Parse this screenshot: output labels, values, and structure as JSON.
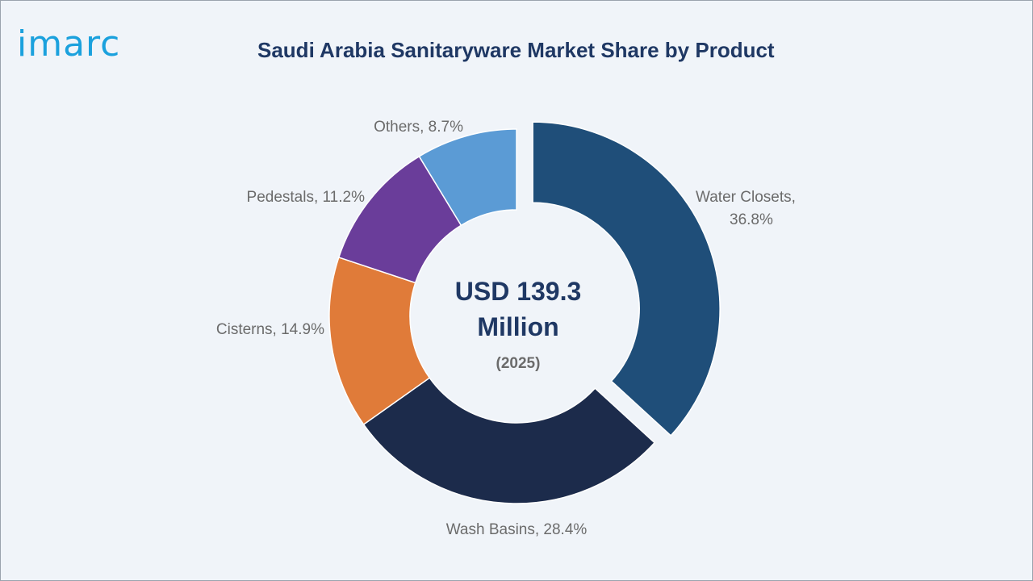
{
  "brand": {
    "logo_text": "imarc"
  },
  "chart_data": {
    "type": "pie",
    "title": "Saudi Arabia Sanitaryware Market Share by Product",
    "center_value": "USD 139.3 Million",
    "center_value_lines": [
      "USD 139.3",
      "Million"
    ],
    "center_year": "(2025)",
    "unit": "%",
    "slices": [
      {
        "label": "Water Closets",
        "value": 36.8,
        "color": "#1f4e79",
        "exploded": true,
        "label_lines": [
          "Water Closets,",
          "36.8%"
        ]
      },
      {
        "label": "Wash Basins",
        "value": 28.4,
        "color": "#1c2b4b",
        "exploded": false,
        "label_lines": [
          "Wash Basins, 28.4%"
        ]
      },
      {
        "label": "Cisterns",
        "value": 14.9,
        "color": "#e07b39",
        "exploded": false,
        "label_lines": [
          "Cisterns, 14.9%"
        ]
      },
      {
        "label": "Pedestals",
        "value": 11.2,
        "color": "#6a3d9a",
        "exploded": false,
        "label_lines": [
          "Pedestals, 11.2%"
        ]
      },
      {
        "label": "Others",
        "value": 8.7,
        "color": "#5b9bd5",
        "exploded": false,
        "label_lines": [
          "Others, 8.7%"
        ]
      }
    ]
  }
}
